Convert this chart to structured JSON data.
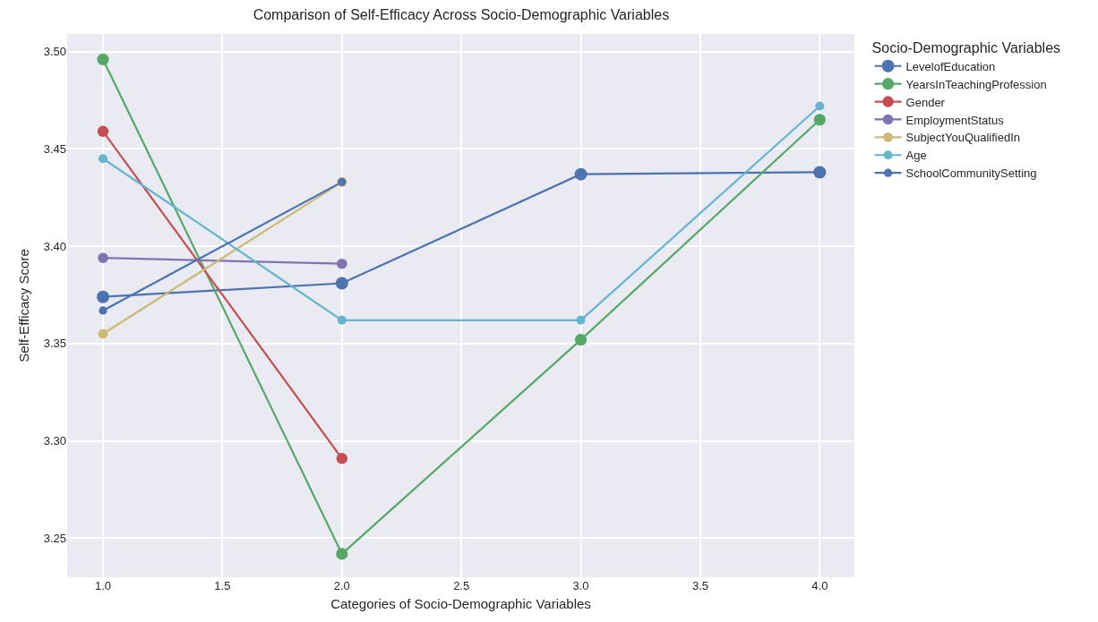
{
  "chart_data": {
    "type": "line",
    "title": "Comparison of Self-Efficacy Across Socio-Demographic Variables",
    "xlabel": "Categories of Socio-Demographic Variables",
    "ylabel": "Self-Efficacy Score",
    "legend_title": "Socio-Demographic Variables",
    "series": [
      {
        "name": "LevelofEducation",
        "color": "#4c72b0",
        "x": [
          1,
          2,
          3,
          4
        ],
        "values": [
          3.374,
          3.381,
          3.437,
          3.438
        ]
      },
      {
        "name": "YearsInTeachingProfession",
        "color": "#55a868",
        "x": [
          1,
          2,
          3,
          4
        ],
        "values": [
          3.496,
          3.242,
          3.352,
          3.465
        ]
      },
      {
        "name": "Gender",
        "color": "#c44e52",
        "x": [
          1,
          2
        ],
        "values": [
          3.459,
          3.291
        ]
      },
      {
        "name": "EmploymentStatus",
        "color": "#8172b3",
        "x": [
          1,
          2
        ],
        "values": [
          3.394,
          3.391
        ]
      },
      {
        "name": "SubjectYouQualifiedIn",
        "color": "#ccb974",
        "x": [
          1,
          2
        ],
        "values": [
          3.355,
          3.433
        ]
      },
      {
        "name": "Age",
        "color": "#64b5cd",
        "x": [
          1,
          2,
          3,
          4
        ],
        "values": [
          3.445,
          3.362,
          3.362,
          3.472
        ]
      },
      {
        "name": "SchoolCommunitySetting",
        "color": "#4c72b0",
        "x": [
          1,
          2
        ],
        "values": [
          3.367,
          3.433
        ]
      }
    ],
    "xlim": [
      0.85,
      4.145
    ],
    "xticks": [
      {
        "value": 1,
        "label": "1.0"
      },
      1.5,
      {
        "value": 2,
        "label": "2.0"
      },
      2.5,
      {
        "value": 3,
        "label": "3.0"
      },
      3.5,
      {
        "value": 4,
        "label": "4.0"
      }
    ],
    "ylim": [
      3.23,
      3.509
    ],
    "yticks": [
      {
        "value": 3.25,
        "label": "3.25"
      },
      {
        "value": 3.3,
        "label": "3.30"
      },
      {
        "value": 3.35,
        "label": "3.35"
      },
      {
        "value": 3.4,
        "label": "3.40"
      },
      {
        "value": 3.45,
        "label": "3.45"
      },
      {
        "value": 3.5,
        "label": "3.50"
      }
    ],
    "grid": true,
    "legend": "top right",
    "marker": "circle",
    "line_style": "solid"
  }
}
